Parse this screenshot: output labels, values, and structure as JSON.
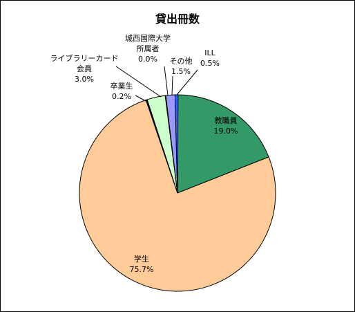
{
  "chart_data": {
    "type": "pie",
    "title": "貸出冊数",
    "slices": [
      {
        "name": "教職員",
        "value": 19.0,
        "label": "19.0%",
        "color": "#339966"
      },
      {
        "name": "学生",
        "value": 75.7,
        "label": "75.7%",
        "color": "#ffcc99"
      },
      {
        "name": "卒業生",
        "value": 0.2,
        "label": "0.2%",
        "color": "#000000"
      },
      {
        "name": "ライブラリーカード会員",
        "name_lines": [
          "ライブラリーカード",
          "会員"
        ],
        "value": 3.0,
        "label": "3.0%",
        "color": "#ccffcc"
      },
      {
        "name": "城西国際大学所属者",
        "name_lines": [
          "城西国際大学",
          "所属者"
        ],
        "value": 0.0,
        "label": "0.0%",
        "color": "#3366ff"
      },
      {
        "name": "その他",
        "value": 1.5,
        "label": "1.5%",
        "color": "#9999ff"
      },
      {
        "name": "ILL",
        "value": 0.5,
        "label": "0.5%",
        "color": "#3366ff"
      }
    ]
  }
}
